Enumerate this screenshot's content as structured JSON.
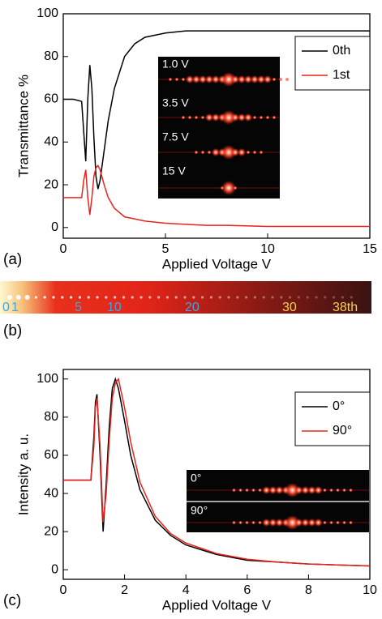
{
  "chart_data": [
    {
      "type": "line",
      "x_label": "Applied Voltage V",
      "y_label": "Transmittance %",
      "panel_label": "(a)",
      "x": [
        0,
        0.5,
        0.9,
        1.0,
        1.1,
        1.2,
        1.3,
        1.4,
        1.5,
        1.6,
        1.7,
        1.8,
        2.0,
        2.2,
        2.5,
        3,
        3.5,
        4,
        5,
        6,
        7,
        8,
        10,
        12,
        15
      ],
      "series": [
        {
          "name": "0th",
          "color": "#000000",
          "values": [
            60,
            60,
            59,
            45,
            31,
            60,
            76,
            65,
            42,
            24,
            18,
            22,
            36,
            50,
            65,
            80,
            86,
            89,
            91,
            92,
            92,
            92,
            92,
            92,
            92
          ]
        },
        {
          "name": "1st",
          "color": "#e8231e",
          "values": [
            14,
            14,
            14,
            22,
            27,
            14,
            6,
            14,
            24,
            28,
            29,
            27,
            20,
            14,
            9,
            5,
            4,
            3,
            2,
            1.5,
            1,
            1,
            0.5,
            0.5,
            0.5
          ]
        }
      ],
      "xlim": [
        0,
        15
      ],
      "xticks": [
        0,
        5,
        10,
        15
      ],
      "ylim": [
        -5,
        100
      ],
      "yticks": [
        0,
        20,
        40,
        60,
        80,
        100
      ],
      "legend": "upper right",
      "inset_labels": [
        "1.0 V",
        "3.5 V",
        "7.5 V",
        "15 V"
      ]
    },
    {
      "type": "line",
      "x_label": "Applied Voltage V",
      "y_label": "Intensity a. u.",
      "panel_label": "(c)",
      "x": [
        0,
        0.5,
        0.9,
        1.0,
        1.05,
        1.1,
        1.2,
        1.3,
        1.4,
        1.5,
        1.6,
        1.7,
        1.8,
        2.0,
        2.2,
        2.5,
        3,
        3.5,
        4,
        5,
        6,
        7,
        8,
        9,
        10
      ],
      "series": [
        {
          "name": "0°",
          "color": "#000000",
          "values": [
            47,
            47,
            47,
            70,
            88,
            92,
            60,
            20,
            45,
            75,
            95,
            100,
            95,
            78,
            60,
            42,
            26,
            18,
            13,
            8,
            5,
            4,
            3,
            2.5,
            2
          ]
        },
        {
          "name": "90°",
          "color": "#e8231e",
          "values": [
            47,
            47,
            47,
            65,
            85,
            90,
            65,
            25,
            40,
            68,
            90,
            98,
            100,
            85,
            67,
            46,
            28,
            19,
            14,
            8.5,
            5.5,
            4,
            3,
            2.5,
            2
          ]
        }
      ],
      "xlim": [
        0,
        10
      ],
      "xticks": [
        0,
        2,
        4,
        6,
        8,
        10
      ],
      "ylim": [
        -5,
        105
      ],
      "yticks": [
        0,
        20,
        40,
        60,
        80,
        100
      ],
      "legend": "upper right",
      "inset_labels": [
        "0°",
        "90°"
      ]
    }
  ],
  "strip": {
    "panel_label": "(b)",
    "labels": [
      "0",
      "1",
      "5",
      "10",
      "20",
      "30",
      "38th"
    ]
  }
}
